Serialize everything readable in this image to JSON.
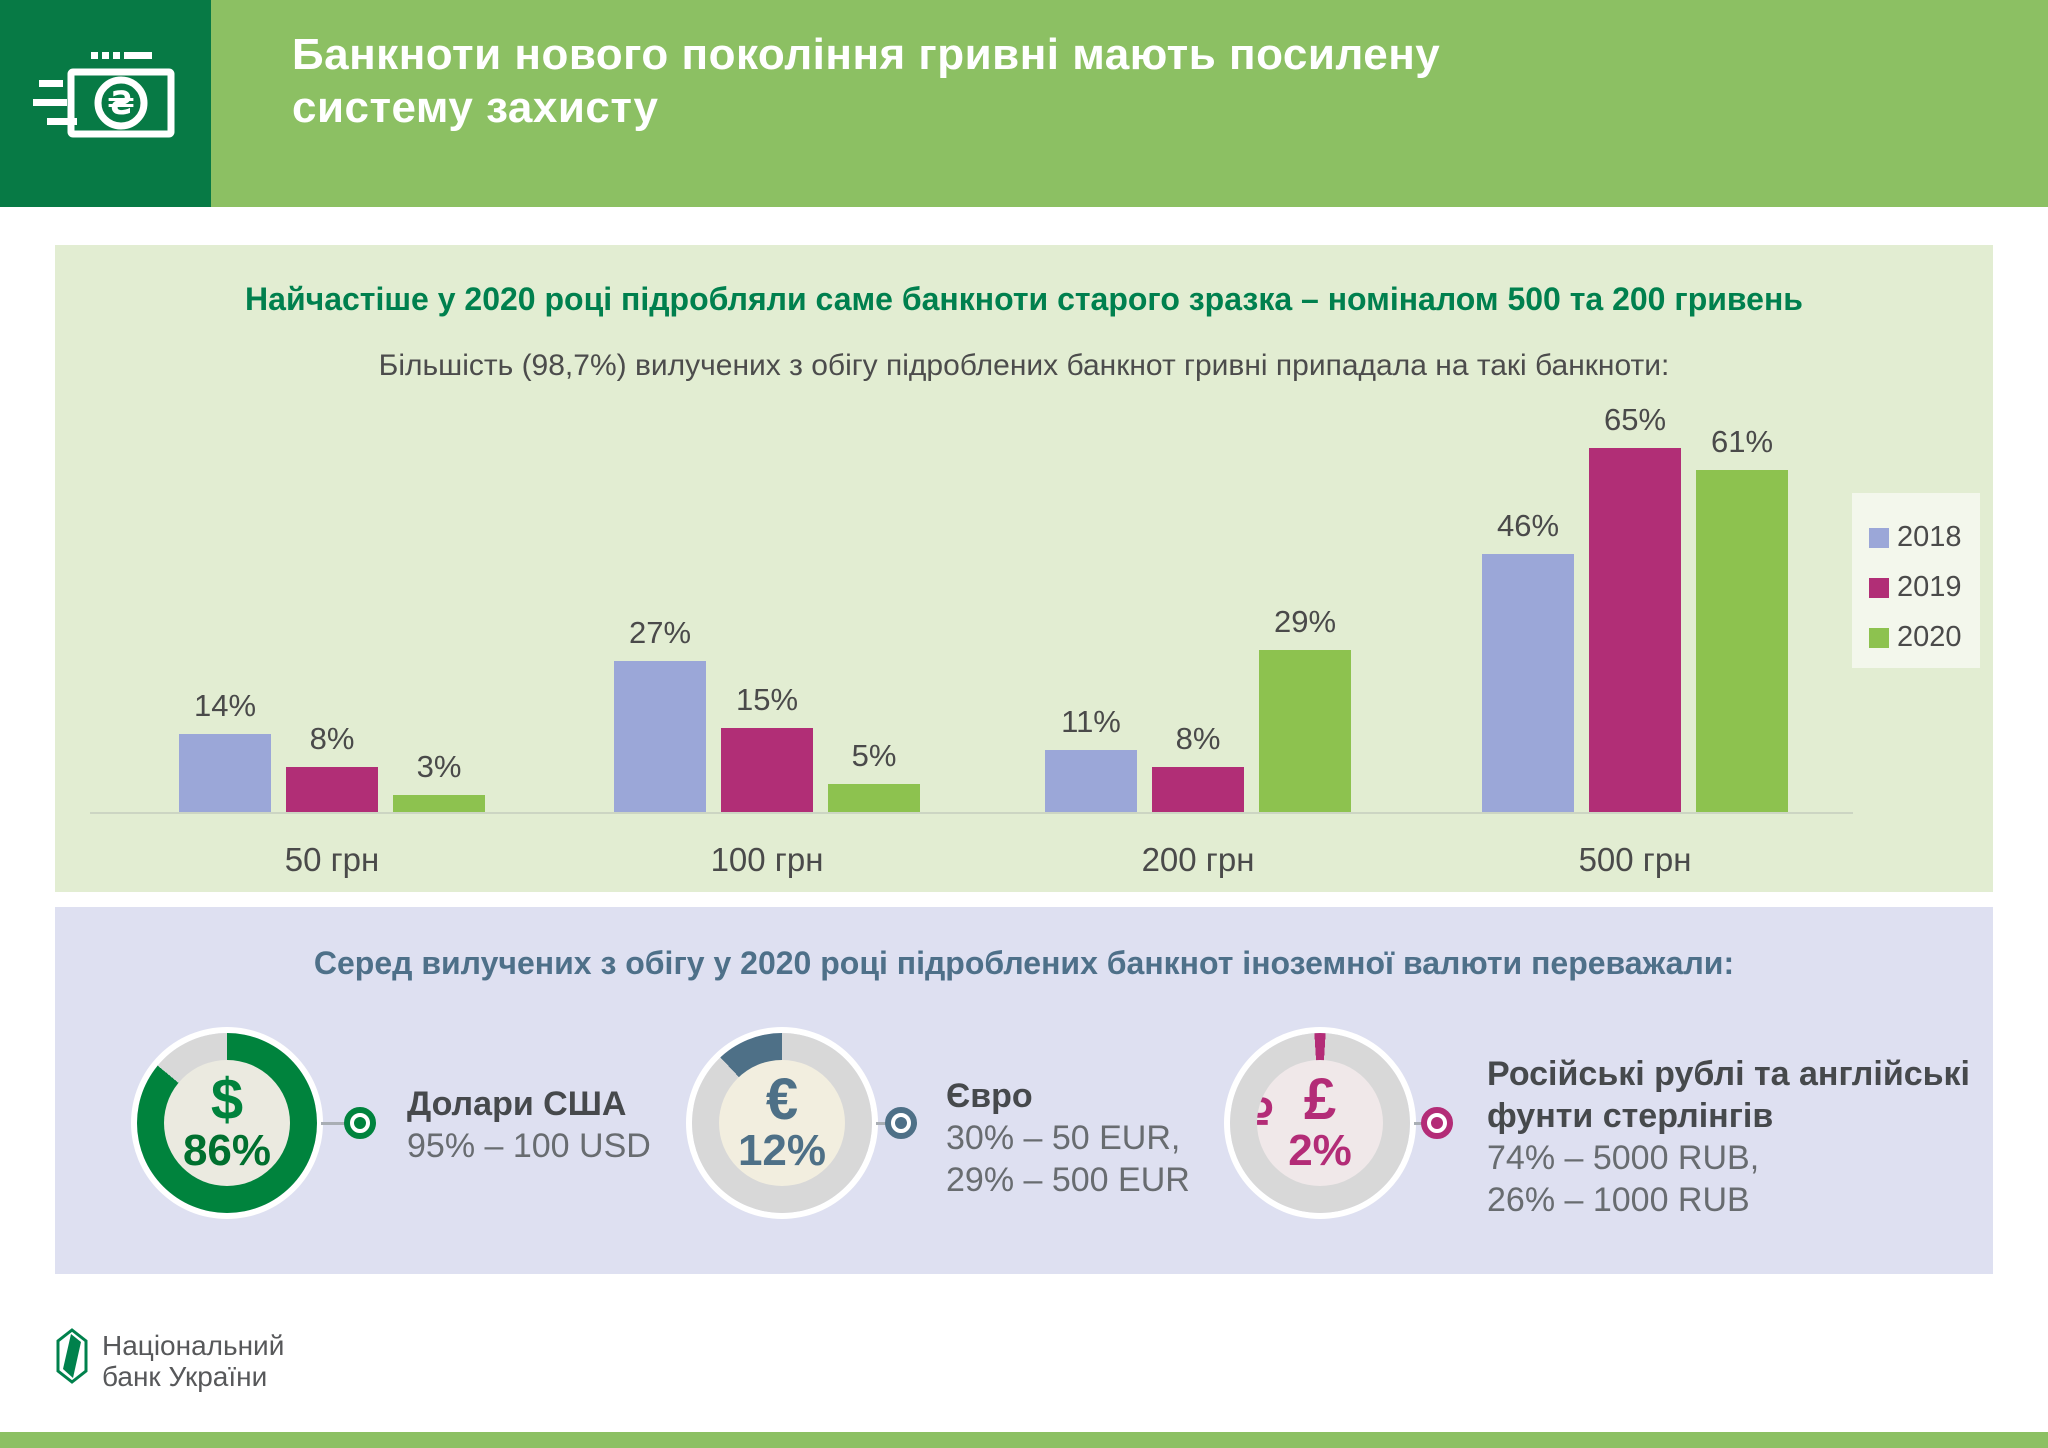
{
  "header": {
    "title_line1": "Банкноти нового покоління гривні мають посилену",
    "title_line2": "систему захисту",
    "icon": "banknote-hryvnia-icon"
  },
  "chart_panel": {
    "title": "Найчастіше у 2020 році підробляли саме банкноти старого зразка – номіналом 500 та 200 гривень",
    "subtitle": "Більшість (98,7%) вилучених з обігу підроблених банкнот гривні припадала на такі банкноти:"
  },
  "chart_data": {
    "type": "bar",
    "title": "Найчастіше у 2020 році підробляли саме банкноти старого зразка – номіналом 500 та 200 гривень",
    "subtitle": "Більшість (98,7%) вилучених з обігу підроблених банкнот гривні припадала на такі банкноти:",
    "categories": [
      "50 грн",
      "100 грн",
      "200 грн",
      "500 грн"
    ],
    "series": [
      {
        "name": "2018",
        "color": "#9BA7D8",
        "values": [
          14,
          27,
          11,
          46
        ]
      },
      {
        "name": "2019",
        "color": "#B12E76",
        "values": [
          8,
          15,
          8,
          65
        ]
      },
      {
        "name": "2020",
        "color": "#8DC24F",
        "values": [
          3,
          5,
          29,
          61
        ]
      }
    ],
    "value_suffix": "%",
    "xlabel": "",
    "ylabel": "",
    "ylim": [
      0,
      70
    ],
    "grid": false,
    "legend_position": "right"
  },
  "foreign_panel": {
    "heading": "Серед вилучених з обігу у 2020 році підроблених банкнот іноземної валюти переважали:",
    "track_color": "#D8D8D8",
    "items": [
      {
        "id": "usd",
        "symbol": "$",
        "symbol_secondary": "",
        "percent": 86,
        "percent_label": "86%",
        "accent": "#00833D",
        "pct_color": "#00702F",
        "hole_bg": "#EBEAE0",
        "arc_anchor": "clockwise-from-top",
        "name_lines": [
          "Долари США"
        ],
        "details": [
          "95% – 100 USD"
        ]
      },
      {
        "id": "eur",
        "symbol": "€",
        "symbol_secondary": "",
        "percent": 12,
        "percent_label": "12%",
        "accent": "#4E7087",
        "pct_color": "#4E7087",
        "hole_bg": "#F2EEDF",
        "arc_anchor": "ending-at-top",
        "name_lines": [
          "Євро"
        ],
        "details": [
          "30% – 50 EUR,",
          "29% – 500 EUR"
        ]
      },
      {
        "id": "rub-gbp",
        "symbol": "£",
        "symbol_secondary": "₽",
        "percent": 2,
        "percent_label": "2%",
        "accent": "#B32C77",
        "pct_color": "#B32C77",
        "hole_bg": "#F0E8E9",
        "arc_anchor": "centered-at-top",
        "name_lines": [
          "Російські рублі та англійські",
          "фунти стерлінгів"
        ],
        "details": [
          "74% – 5000 RUB,",
          "26% – 1000 RUB"
        ]
      }
    ]
  },
  "footer": {
    "org_line1": "Національний",
    "org_line2": "банк України"
  },
  "colors": {
    "header_green": "#8CC063",
    "header_dark_green": "#077A45",
    "panel1_bg": "#E2EDD2",
    "panel2_bg": "#DEE0F1",
    "title_green": "#00804E",
    "heading_blue": "#4E7089",
    "strip_green": "#8CC063",
    "logo_green": "#00814C"
  }
}
